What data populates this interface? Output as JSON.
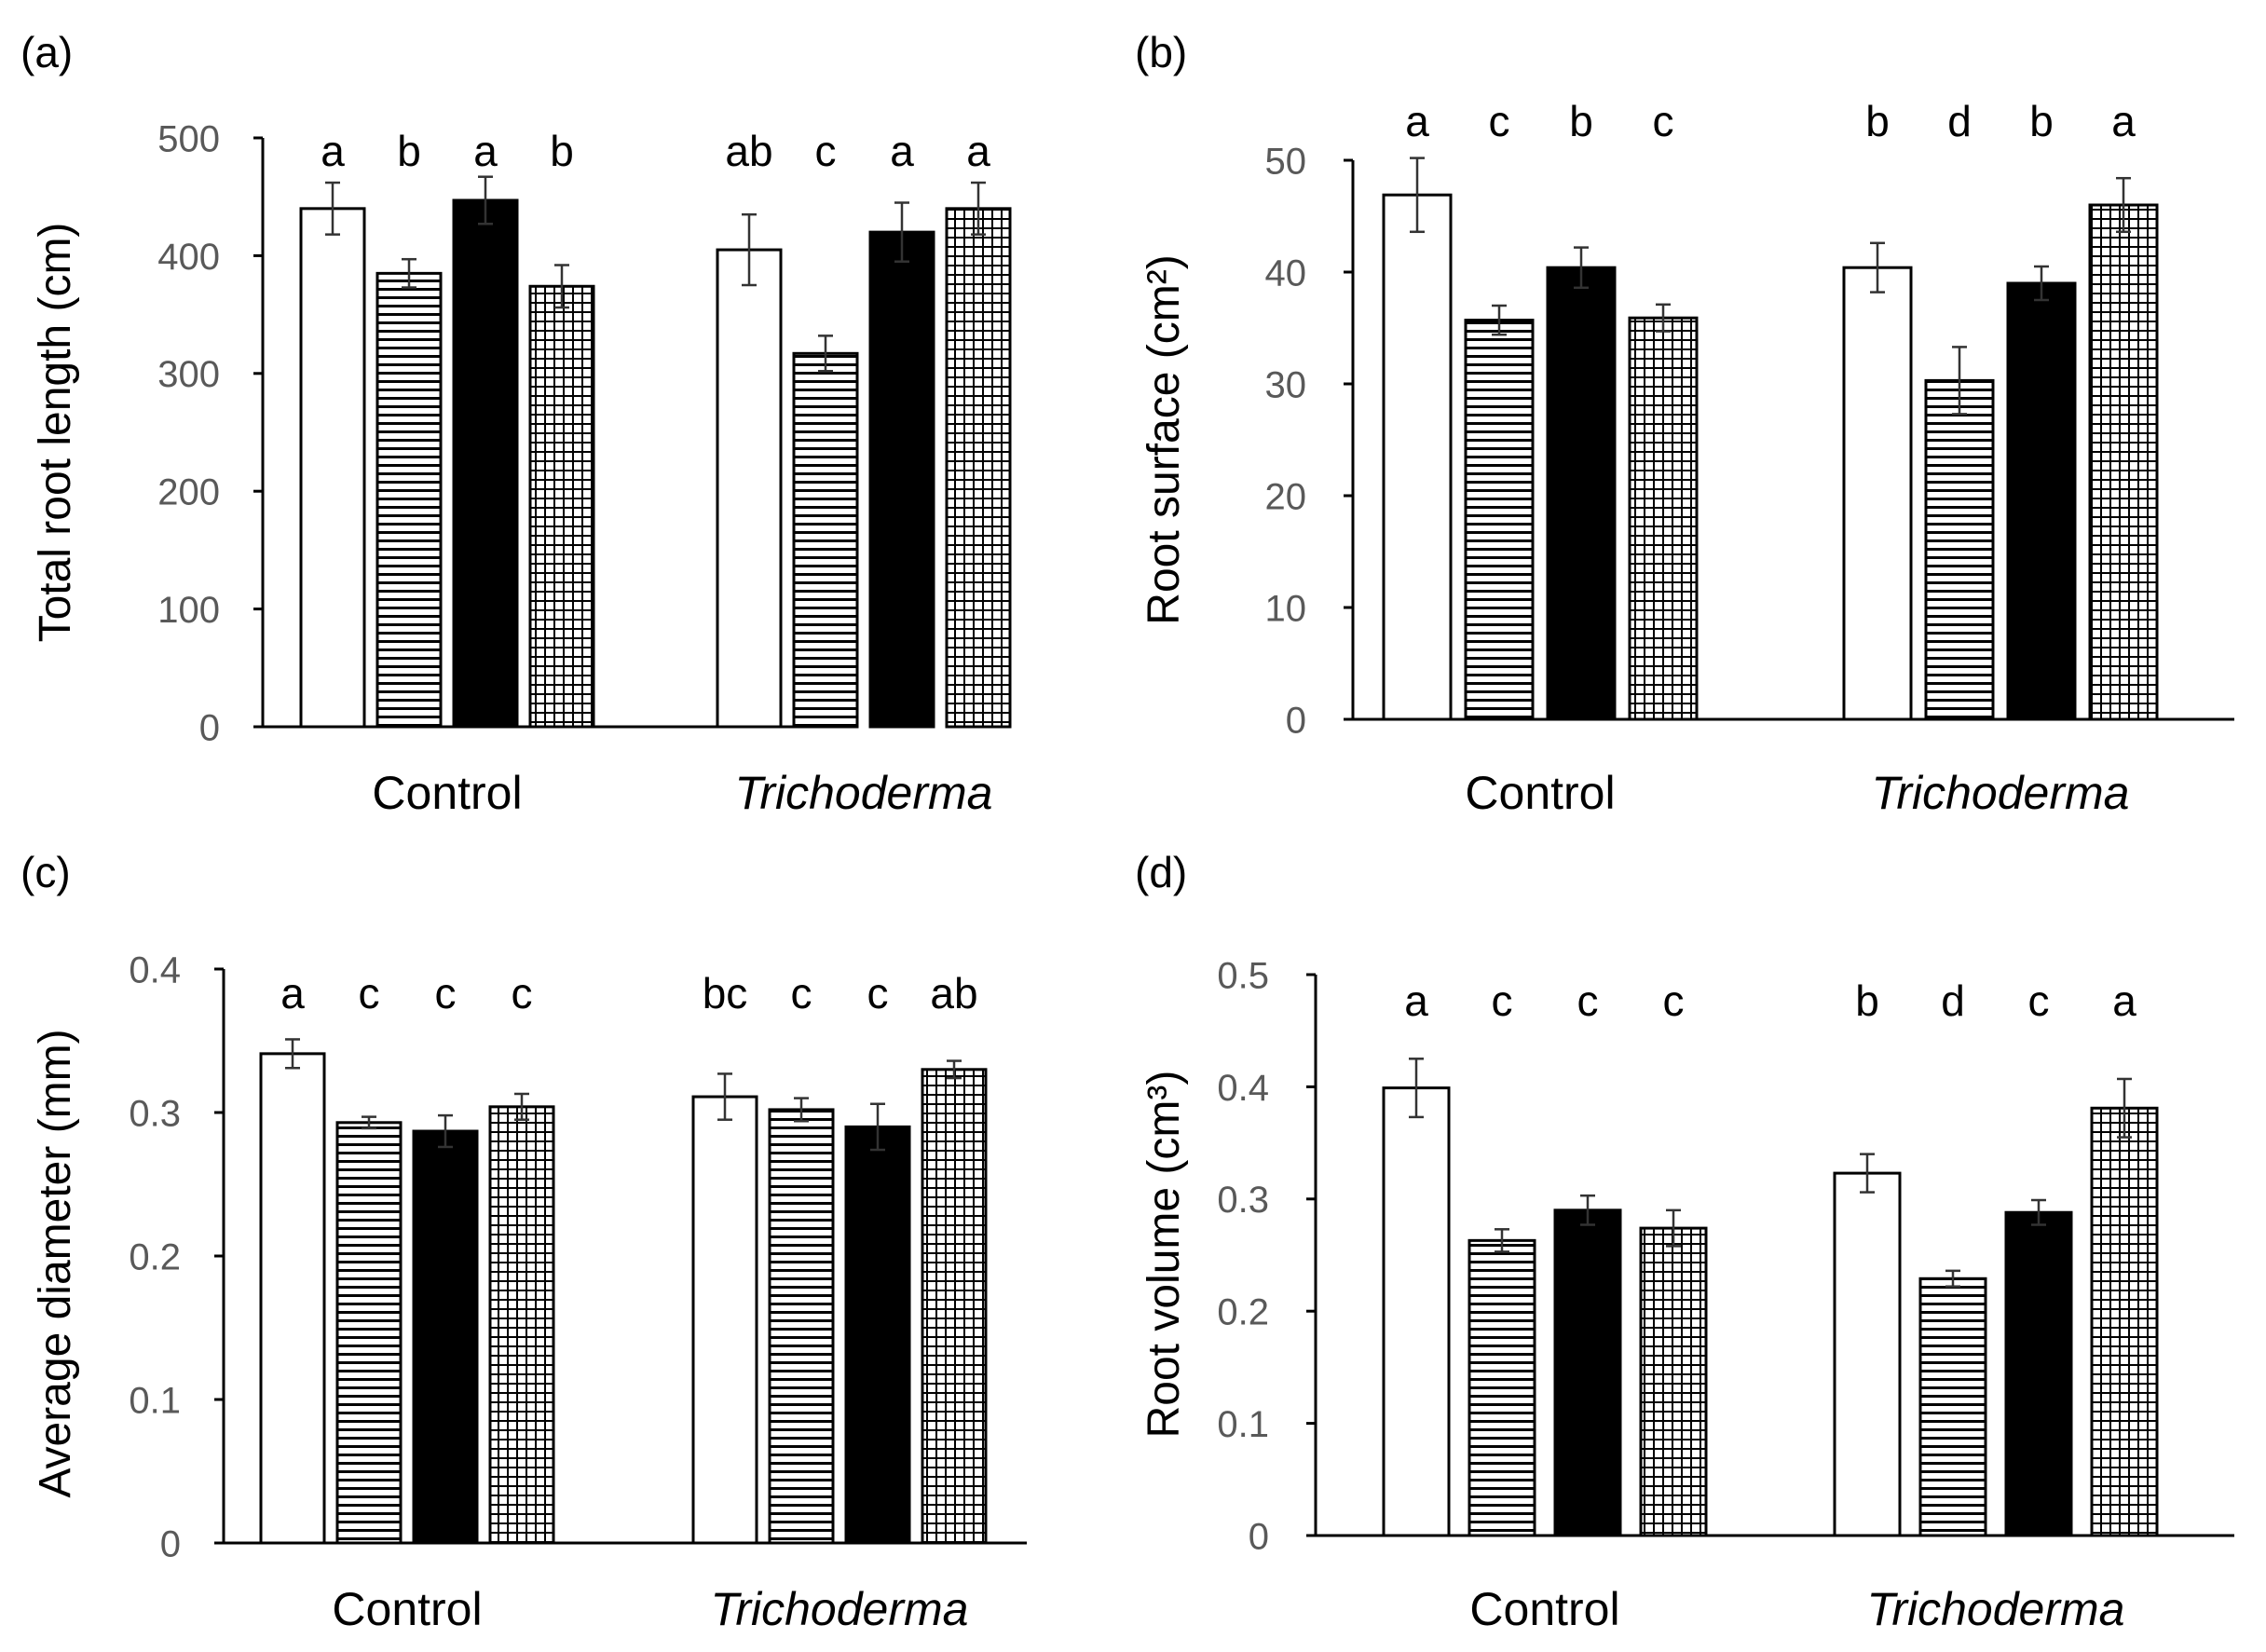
{
  "chart_data": [
    {
      "type": "bar",
      "panel_label": "(a)",
      "ylabel": "Total root length (cm)",
      "ylim": [
        0,
        500
      ],
      "yticks": [
        "0",
        "100",
        "200",
        "300",
        "400",
        "500"
      ],
      "ytick_values": [
        0,
        100,
        200,
        300,
        400,
        500
      ],
      "categories": [
        "Control",
        "Trichoderma"
      ],
      "category_italic": [
        false,
        true
      ],
      "series": [
        {
          "name": "white",
          "fill": "white",
          "values": [
            440,
            405
          ],
          "errors": [
            22,
            30
          ]
        },
        {
          "name": "horizontal-lines",
          "fill": "hlines",
          "values": [
            385,
            317
          ],
          "errors": [
            12,
            15
          ]
        },
        {
          "name": "black",
          "fill": "black",
          "values": [
            447,
            420
          ],
          "errors": [
            20,
            25
          ]
        },
        {
          "name": "grid",
          "fill": "grid",
          "values": [
            374,
            440
          ],
          "errors": [
            18,
            22
          ]
        }
      ],
      "letters": [
        [
          "a",
          "b",
          "a",
          "b"
        ],
        [
          "ab",
          "c",
          "a",
          "a"
        ]
      ]
    },
    {
      "type": "bar",
      "panel_label": "(b)",
      "ylabel": "Root surface (cm²)",
      "ylim": [
        0,
        50
      ],
      "yticks": [
        "0",
        "10",
        "20",
        "30",
        "40",
        "50"
      ],
      "ytick_values": [
        0,
        10,
        20,
        30,
        40,
        50
      ],
      "categories": [
        "Control",
        "Trichoderma"
      ],
      "category_italic": [
        false,
        true
      ],
      "series": [
        {
          "name": "white",
          "fill": "white",
          "values": [
            46.9,
            40.4
          ],
          "errors": [
            3.3,
            2.2
          ]
        },
        {
          "name": "horizontal-lines",
          "fill": "hlines",
          "values": [
            35.7,
            30.3
          ],
          "errors": [
            1.3,
            3.0
          ]
        },
        {
          "name": "black",
          "fill": "black",
          "values": [
            40.4,
            39.0
          ],
          "errors": [
            1.8,
            1.5
          ]
        },
        {
          "name": "grid",
          "fill": "grid",
          "values": [
            35.9,
            46.0
          ],
          "errors": [
            1.2,
            2.4
          ]
        }
      ],
      "letters": [
        [
          "a",
          "c",
          "b",
          "c"
        ],
        [
          "b",
          "d",
          "b",
          "a"
        ]
      ]
    },
    {
      "type": "bar",
      "panel_label": "(c)",
      "ylabel": "Average diameter (mm)",
      "ylim": [
        0,
        0.4
      ],
      "yticks": [
        "0",
        "0.1",
        "0.2",
        "0.3",
        "0.4"
      ],
      "ytick_values": [
        0,
        0.1,
        0.2,
        0.3,
        0.4
      ],
      "categories": [
        "Control",
        "Trichoderma"
      ],
      "category_italic": [
        false,
        true
      ],
      "series": [
        {
          "name": "white",
          "fill": "white",
          "values": [
            0.341,
            0.311
          ],
          "errors": [
            0.01,
            0.016
          ]
        },
        {
          "name": "horizontal-lines",
          "fill": "hlines",
          "values": [
            0.293,
            0.302
          ],
          "errors": [
            0.004,
            0.008
          ]
        },
        {
          "name": "black",
          "fill": "black",
          "values": [
            0.287,
            0.29
          ],
          "errors": [
            0.011,
            0.016
          ]
        },
        {
          "name": "grid",
          "fill": "grid",
          "values": [
            0.304,
            0.33
          ],
          "errors": [
            0.009,
            0.006
          ]
        }
      ],
      "letters": [
        [
          "a",
          "c",
          "c",
          "c"
        ],
        [
          "bc",
          "c",
          "c",
          "ab"
        ]
      ]
    },
    {
      "type": "bar",
      "panel_label": "(d)",
      "ylabel": "Root volume (cm³)",
      "ylim": [
        0,
        0.5
      ],
      "yticks": [
        "0",
        "0.1",
        "0.2",
        "0.3",
        "0.4",
        "0.5"
      ],
      "ytick_values": [
        0,
        0.1,
        0.2,
        0.3,
        0.4,
        0.5
      ],
      "categories": [
        "Control",
        "Trichoderma"
      ],
      "category_italic": [
        false,
        true
      ],
      "series": [
        {
          "name": "white",
          "fill": "white",
          "values": [
            0.399,
            0.323
          ],
          "errors": [
            0.026,
            0.017
          ]
        },
        {
          "name": "horizontal-lines",
          "fill": "hlines",
          "values": [
            0.263,
            0.229
          ],
          "errors": [
            0.01,
            0.007
          ]
        },
        {
          "name": "black",
          "fill": "black",
          "values": [
            0.29,
            0.288
          ],
          "errors": [
            0.013,
            0.011
          ]
        },
        {
          "name": "grid",
          "fill": "grid",
          "values": [
            0.274,
            0.381
          ],
          "errors": [
            0.016,
            0.026
          ]
        }
      ],
      "letters": [
        [
          "a",
          "c",
          "c",
          "c"
        ],
        [
          "b",
          "d",
          "c",
          "a"
        ]
      ]
    }
  ]
}
